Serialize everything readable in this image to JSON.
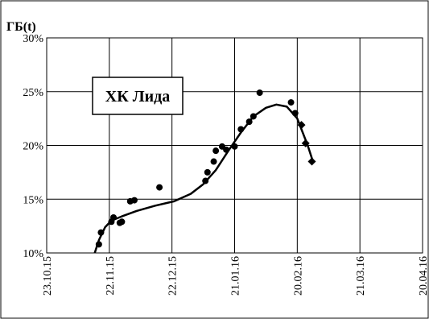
{
  "chart_data": {
    "type": "scatter",
    "title": "",
    "ylabel": "ГБ(t)",
    "annotation": "ХК Лида",
    "x_tick_labels": [
      "23.10.15",
      "22.11.15",
      "22.12.15",
      "21.01.16",
      "20.02.16",
      "21.03.16",
      "20.04.16"
    ],
    "y_tick_labels": [
      "10%",
      "15%",
      "20%",
      "25%",
      "30%"
    ],
    "xlim": [
      "2015-10-23",
      "2016-04-20"
    ],
    "ylim": [
      0.1,
      0.3
    ],
    "grid": true,
    "series": [
      {
        "marker": "circle",
        "color": "#000000",
        "points": [
          {
            "x": "2015-11-17",
            "y": 0.108
          },
          {
            "x": "2015-11-18",
            "y": 0.119
          },
          {
            "x": "2015-11-23",
            "y": 0.129
          },
          {
            "x": "2015-11-24",
            "y": 0.133
          },
          {
            "x": "2015-11-27",
            "y": 0.128
          },
          {
            "x": "2015-11-28",
            "y": 0.129
          },
          {
            "x": "2015-12-02",
            "y": 0.148
          },
          {
            "x": "2015-12-04",
            "y": 0.149
          },
          {
            "x": "2015-12-16",
            "y": 0.161
          },
          {
            "x": "2016-01-07",
            "y": 0.167
          },
          {
            "x": "2016-01-08",
            "y": 0.175
          },
          {
            "x": "2016-01-11",
            "y": 0.185
          },
          {
            "x": "2016-01-12",
            "y": 0.195
          },
          {
            "x": "2016-01-15",
            "y": 0.199
          },
          {
            "x": "2016-01-17",
            "y": 0.196
          },
          {
            "x": "2016-01-21",
            "y": 0.199
          },
          {
            "x": "2016-01-24",
            "y": 0.215
          },
          {
            "x": "2016-01-28",
            "y": 0.222
          },
          {
            "x": "2016-01-30",
            "y": 0.227
          },
          {
            "x": "2016-02-02",
            "y": 0.249
          },
          {
            "x": "2016-02-17",
            "y": 0.24
          },
          {
            "x": "2016-02-19",
            "y": 0.23
          }
        ]
      },
      {
        "marker": "diamond",
        "color": "#000000",
        "points": [
          {
            "x": "2016-02-22",
            "y": 0.219
          },
          {
            "x": "2016-02-24",
            "y": 0.202
          },
          {
            "x": "2016-02-27",
            "y": 0.185
          }
        ]
      },
      {
        "type": "line",
        "color": "#000000",
        "points": [
          {
            "x": "2015-11-15",
            "y": 0.1
          },
          {
            "x": "2015-11-17",
            "y": 0.112
          },
          {
            "x": "2015-11-20",
            "y": 0.124
          },
          {
            "x": "2015-11-23",
            "y": 0.13
          },
          {
            "x": "2015-11-28",
            "y": 0.134
          },
          {
            "x": "2015-12-05",
            "y": 0.139
          },
          {
            "x": "2015-12-14",
            "y": 0.144
          },
          {
            "x": "2015-12-23",
            "y": 0.148
          },
          {
            "x": "2015-12-31",
            "y": 0.155
          },
          {
            "x": "2016-01-06",
            "y": 0.164
          },
          {
            "x": "2016-01-12",
            "y": 0.177
          },
          {
            "x": "2016-01-18",
            "y": 0.195
          },
          {
            "x": "2016-01-24",
            "y": 0.212
          },
          {
            "x": "2016-01-30",
            "y": 0.227
          },
          {
            "x": "2016-02-05",
            "y": 0.235
          },
          {
            "x": "2016-02-10",
            "y": 0.238
          },
          {
            "x": "2016-02-15",
            "y": 0.236
          },
          {
            "x": "2016-02-20",
            "y": 0.225
          },
          {
            "x": "2016-02-25",
            "y": 0.2
          },
          {
            "x": "2016-02-27",
            "y": 0.188
          },
          {
            "x": "2016-02-28",
            "y": 0.184
          }
        ]
      }
    ]
  }
}
